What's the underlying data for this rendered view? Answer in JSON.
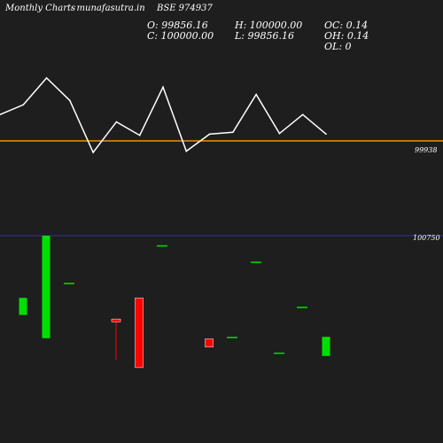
{
  "header": {
    "left_title": "Monthly Charts",
    "site": "- munafasutra.in",
    "symbol": "BSE 974937",
    "open": "O: 99856.16",
    "close": "C: 100000.00",
    "high": "H: 100000.00",
    "low": "L: 99856.16",
    "oc": "OC: 0.14",
    "oh": "OH: 0.14",
    "ol": "OL: 0"
  },
  "colors": {
    "background": "#1e1e1e",
    "line": "#ffffff",
    "ma_line": "#ff8c00",
    "upper_ref_line": "#3030a0",
    "bull": "#00e000",
    "bear": "#ff0000",
    "neutral": "#ffffff"
  },
  "chart_data": [
    {
      "type": "line",
      "name": "close-line",
      "x": [
        0,
        1,
        2,
        3,
        4,
        5,
        6,
        7,
        8,
        9,
        10,
        11,
        12,
        13,
        14
      ],
      "values": [
        100052,
        100068,
        100112,
        100075,
        99990,
        100040,
        100018,
        100097,
        99992,
        100020,
        100023,
        100085,
        100021,
        100052,
        100020
      ],
      "ref_line": {
        "value": 99938,
        "label": "99938"
      }
    },
    {
      "type": "candlestick",
      "ref_line": {
        "value": 100750,
        "label": "100750"
      },
      "ylim": [
        98300,
        100750
      ],
      "candles": [
        {
          "open": 99590,
          "close": 99840,
          "high": 99840,
          "low": 99590,
          "dir": "up"
        },
        {
          "open": 99250,
          "close": 100750,
          "high": 100750,
          "low": 99250,
          "dir": "up"
        },
        {
          "open": 100050,
          "close": 100050,
          "high": 100050,
          "low": 100050,
          "dir": "flat"
        },
        {
          "open": 99530,
          "close": 99490,
          "high": 99530,
          "low": 98930,
          "dir": "down"
        },
        {
          "open": 99840,
          "close": 98820,
          "high": 99840,
          "low": 98820,
          "dir": "down"
        },
        {
          "open": 100600,
          "close": 100600,
          "high": 100600,
          "low": 100600,
          "dir": "flat"
        },
        {
          "open": 99240,
          "close": 99120,
          "high": 99240,
          "low": 99120,
          "dir": "down"
        },
        {
          "open": 99260,
          "close": 99260,
          "high": 99260,
          "low": 99260,
          "dir": "flat"
        },
        {
          "open": 100360,
          "close": 100360,
          "high": 100360,
          "low": 100360,
          "dir": "flat"
        },
        {
          "open": 99030,
          "close": 99030,
          "high": 99030,
          "low": 99030,
          "dir": "flat"
        },
        {
          "open": 99700,
          "close": 99700,
          "high": 99700,
          "low": 99700,
          "dir": "flat"
        },
        {
          "open": 98990,
          "close": 99270,
          "high": 99270,
          "low": 98990,
          "dir": "up"
        }
      ]
    }
  ]
}
